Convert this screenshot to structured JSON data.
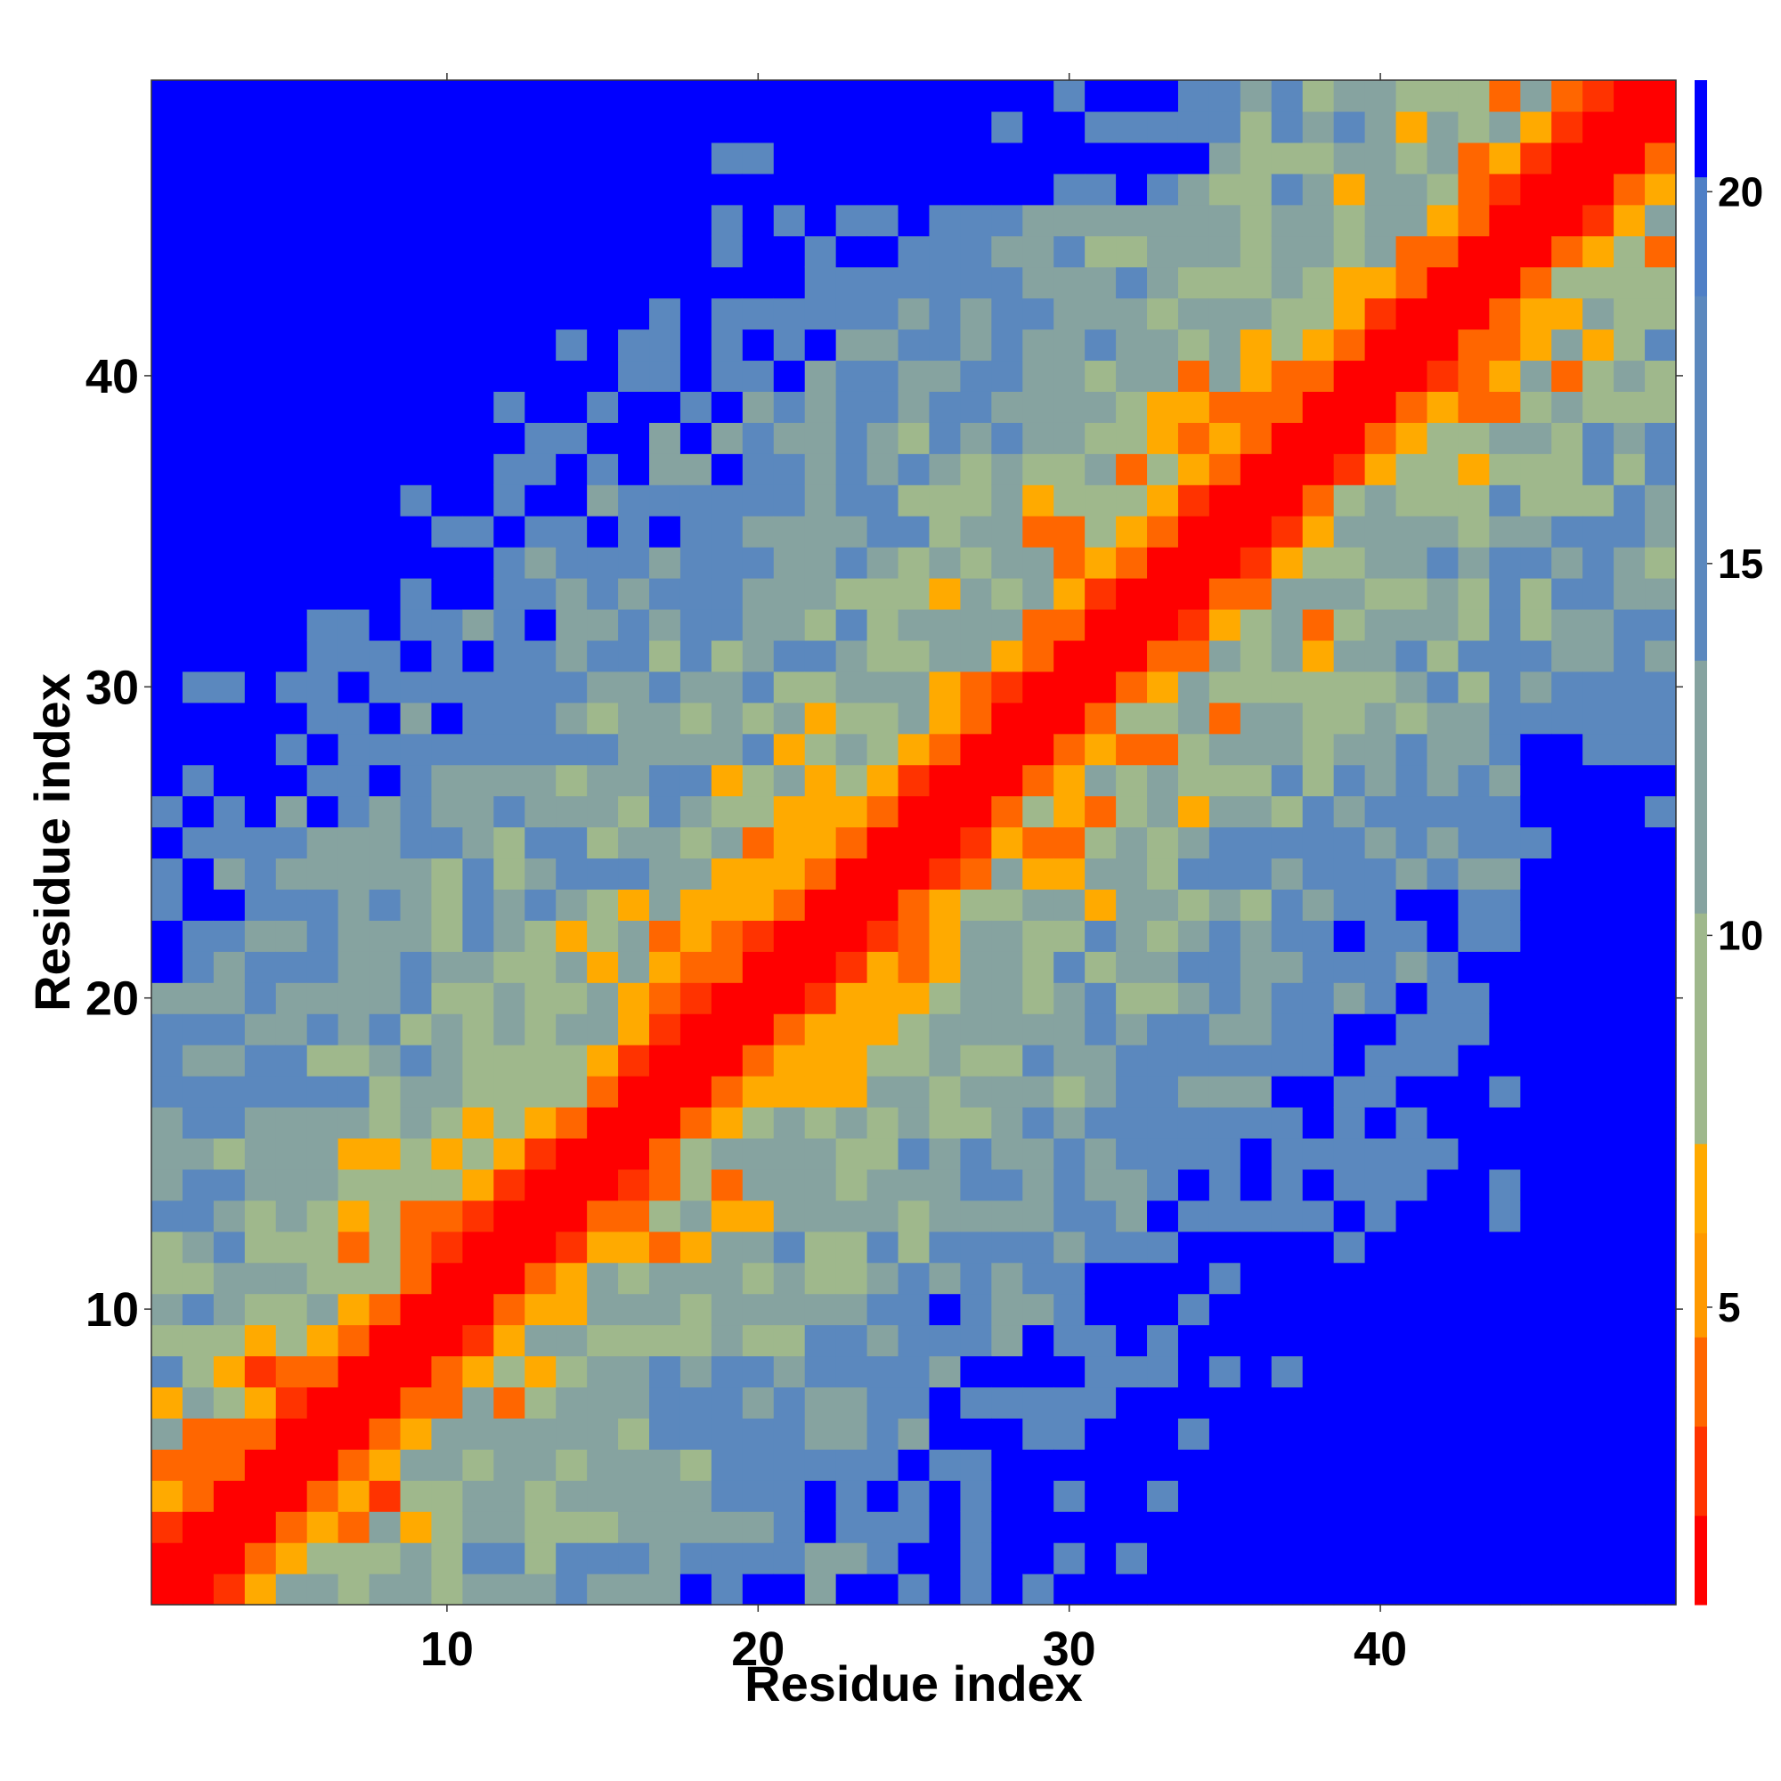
{
  "chart_data": {
    "type": "heatmap",
    "title": "",
    "xlabel": "Residue index",
    "ylabel": "Residue index",
    "xlim": [
      0.5,
      49.5
    ],
    "ylim": [
      0.5,
      49.5
    ],
    "x_ticks": [
      10,
      20,
      30,
      40
    ],
    "y_ticks": [
      10,
      20,
      30,
      40
    ],
    "colorbar": {
      "ticks": [
        5,
        10,
        15,
        20
      ],
      "range": [
        1,
        21.5
      ],
      "colors": {
        "red": "#ff0000",
        "red_orange": "#ff3300",
        "dark_orange": "#ff6600",
        "orange": "#ff9900",
        "amber": "#ffaa00",
        "sage": "#9fb88c",
        "grey_green": "#86a3a0",
        "steel_blue": "#5b88be",
        "blue": "#0000ff"
      }
    },
    "n_residues": 49,
    "values_note": "pairwise distances, symmetric-like contact map; near diagonal small"
  }
}
